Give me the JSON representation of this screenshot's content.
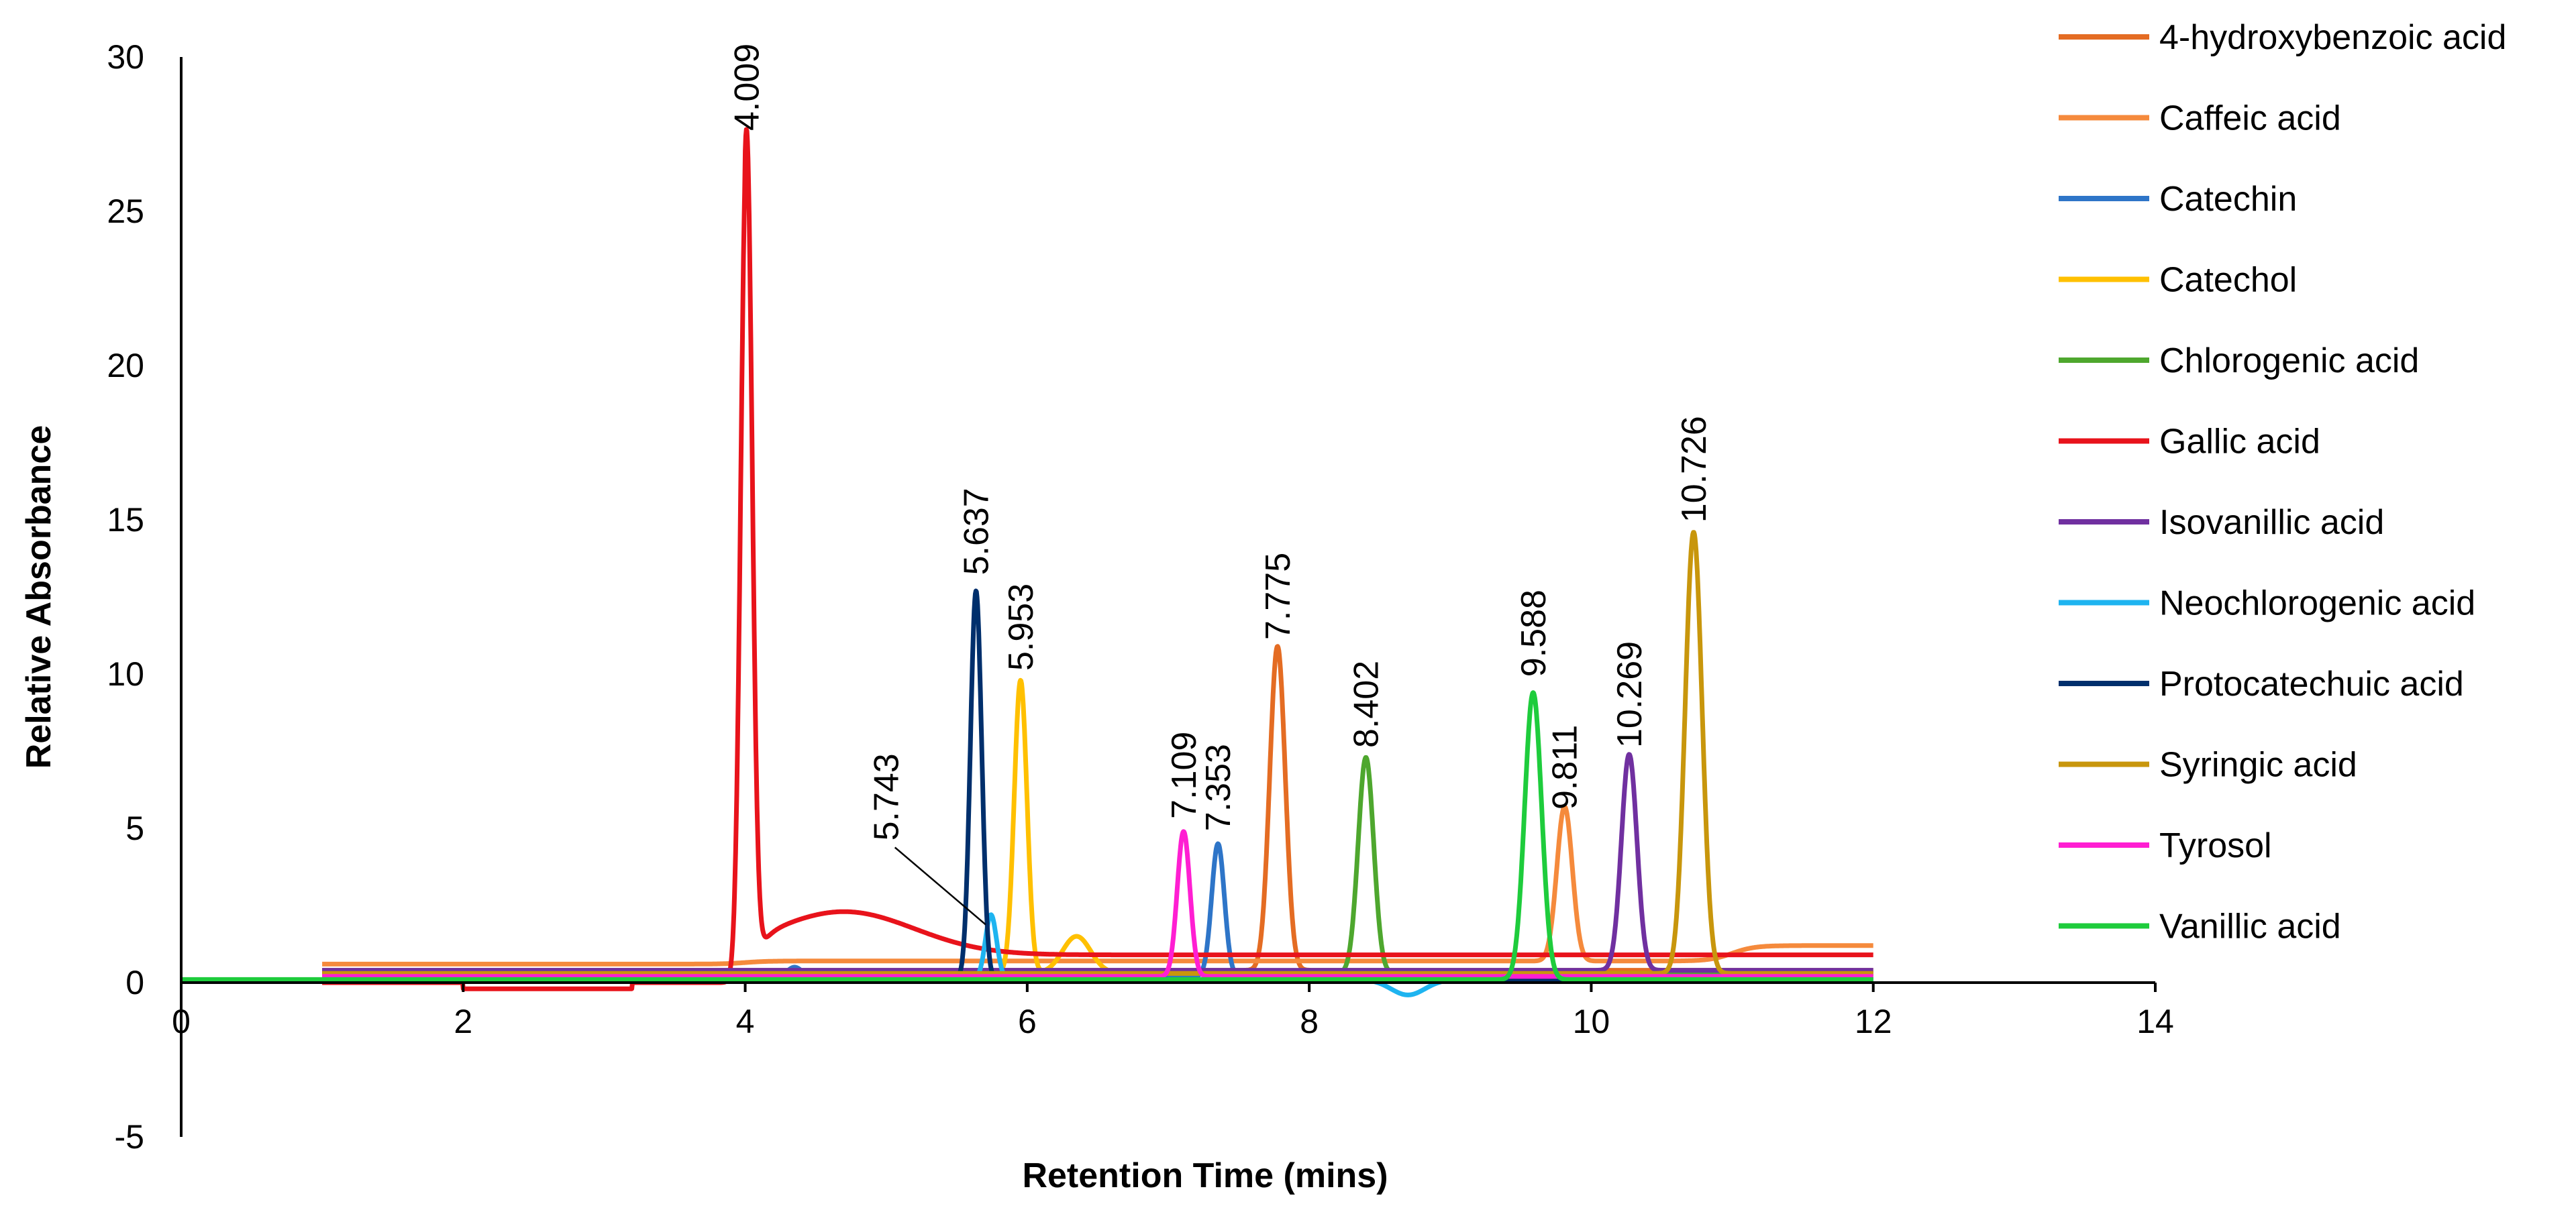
{
  "chart_data": {
    "type": "line",
    "title": "",
    "xlabel": "Retention Time (mins)",
    "ylabel": "Relative Absorbance",
    "xlim": [
      0,
      14
    ],
    "ylim": [
      -5,
      30
    ],
    "xticks": [
      0,
      2,
      4,
      6,
      8,
      10,
      12,
      14
    ],
    "yticks": [
      -5,
      0,
      5,
      10,
      15,
      20,
      25,
      30
    ],
    "grid": false,
    "legend_position": "right",
    "series": [
      {
        "name": "4-hydroxybenzoic acid",
        "color": "#E46C23",
        "x_range": [
          1,
          12
        ],
        "baseline": 0.4,
        "peaks": [
          {
            "rt": 7.775,
            "height": 10.5,
            "width": 0.055
          }
        ]
      },
      {
        "name": "Caffeic acid",
        "color": "#F58A3C",
        "x_range": [
          1,
          12
        ],
        "baseline": 0.6,
        "peaks": [
          {
            "rt": 9.811,
            "height": 5.0,
            "width": 0.055
          }
        ],
        "steps": [
          {
            "x": 4.0,
            "to": 0.7
          },
          {
            "x": 11.0,
            "to": 1.2
          }
        ]
      },
      {
        "name": "Catechin",
        "color": "#2E75C8",
        "x_range": [
          1,
          12
        ],
        "baseline": 0.2,
        "peaks": [
          {
            "rt": 7.353,
            "height": 4.3,
            "width": 0.045
          },
          {
            "rt": 4.35,
            "height": 0.3,
            "width": 0.05
          }
        ]
      },
      {
        "name": "Catechol",
        "color": "#FFC000",
        "x_range": [
          1,
          12
        ],
        "baseline": 0.3,
        "peaks": [
          {
            "rt": 5.953,
            "height": 9.5,
            "width": 0.045
          },
          {
            "rt": 6.35,
            "height": 1.2,
            "width": 0.1
          }
        ]
      },
      {
        "name": "Chlorogenic acid",
        "color": "#4EA72E",
        "x_range": [
          1,
          12
        ],
        "baseline": 0.3,
        "peaks": [
          {
            "rt": 8.402,
            "height": 7.0,
            "width": 0.055
          }
        ]
      },
      {
        "name": "Gallic acid",
        "color": "#E8131B",
        "x_range": [
          1,
          12
        ],
        "baseline": 0.0,
        "peaks": [
          {
            "rt": 4.009,
            "height": 27.0,
            "width": 0.04
          }
        ]
      },
      {
        "name": "Isovanillic acid",
        "color": "#7030A0",
        "x_range": [
          1,
          12
        ],
        "baseline": 0.4,
        "peaks": [
          {
            "rt": 10.269,
            "height": 7.0,
            "width": 0.055
          }
        ]
      },
      {
        "name": "Neochlorogenic acid",
        "color": "#1EB4F0",
        "x_range": [
          1,
          12
        ],
        "baseline": 0.1,
        "peaks": [
          {
            "rt": 5.743,
            "height": 2.1,
            "width": 0.04
          },
          {
            "rt": 8.7,
            "height": -0.5,
            "width": 0.12
          }
        ]
      },
      {
        "name": "Protocatechuic acid",
        "color": "#002F6C",
        "x_range": [
          1,
          12
        ],
        "baseline": 0.1,
        "peaks": [
          {
            "rt": 5.637,
            "height": 12.6,
            "width": 0.04
          }
        ]
      },
      {
        "name": "Syringic acid",
        "color": "#C8960C",
        "x_range": [
          1,
          12
        ],
        "baseline": 0.3,
        "peaks": [
          {
            "rt": 10.726,
            "height": 14.3,
            "width": 0.06
          }
        ]
      },
      {
        "name": "Tyrosol",
        "color": "#FF1ED2",
        "x_range": [
          1,
          12
        ],
        "baseline": 0.2,
        "peaks": [
          {
            "rt": 7.109,
            "height": 4.7,
            "width": 0.045
          }
        ]
      },
      {
        "name": "Vanillic acid",
        "color": "#1ECC3C",
        "x_range": [
          0,
          12
        ],
        "baseline": 0.1,
        "peaks": [
          {
            "rt": 9.588,
            "height": 9.3,
            "width": 0.06
          }
        ]
      }
    ],
    "peak_labels": [
      {
        "text": "4.009",
        "x": 4.009,
        "y": 27.0
      },
      {
        "text": "5.637",
        "x": 5.637,
        "y": 12.6
      },
      {
        "text": "5.953",
        "x": 5.953,
        "y": 9.5
      },
      {
        "text": "5.743",
        "x": 5.743,
        "y": 2.1,
        "callout": true,
        "label_x": 5.0,
        "label_y": 4.6
      },
      {
        "text": "7.109",
        "x": 7.109,
        "y": 4.7
      },
      {
        "text": "7.353",
        "x": 7.353,
        "y": 4.3
      },
      {
        "text": "7.775",
        "x": 7.775,
        "y": 10.5
      },
      {
        "text": "8.402",
        "x": 8.402,
        "y": 7.0
      },
      {
        "text": "9.588",
        "x": 9.588,
        "y": 9.3
      },
      {
        "text": "9.811",
        "x": 9.811,
        "y": 5.0
      },
      {
        "text": "10.269",
        "x": 10.269,
        "y": 7.0
      },
      {
        "text": "10.726",
        "x": 10.726,
        "y": 14.3
      }
    ]
  }
}
